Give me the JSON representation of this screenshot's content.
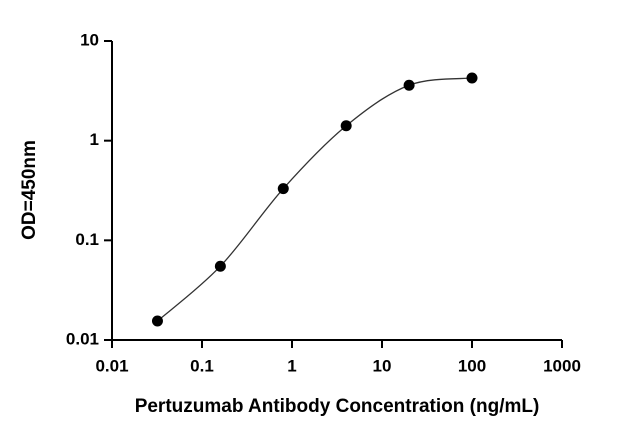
{
  "chart_data": {
    "type": "scatter",
    "x_label": "Pertuzumab Antibody Concentration (ng/mL)",
    "y_label": "OD=450nm",
    "x": [
      0.032,
      0.16,
      0.8,
      4,
      20,
      100
    ],
    "values": [
      0.0155,
      0.055,
      0.33,
      1.41,
      3.6,
      4.25
    ],
    "color": "#000000",
    "curve_color": "#333333",
    "x_scale": "log",
    "y_scale": "log",
    "xlim": [
      0.01,
      1000
    ],
    "xticks": [
      0.01,
      0.1,
      1,
      10,
      100,
      1000
    ],
    "ylim": [
      0.01,
      10
    ],
    "yticks": [
      0.01,
      0.1,
      1,
      10
    ],
    "grid": false
  }
}
